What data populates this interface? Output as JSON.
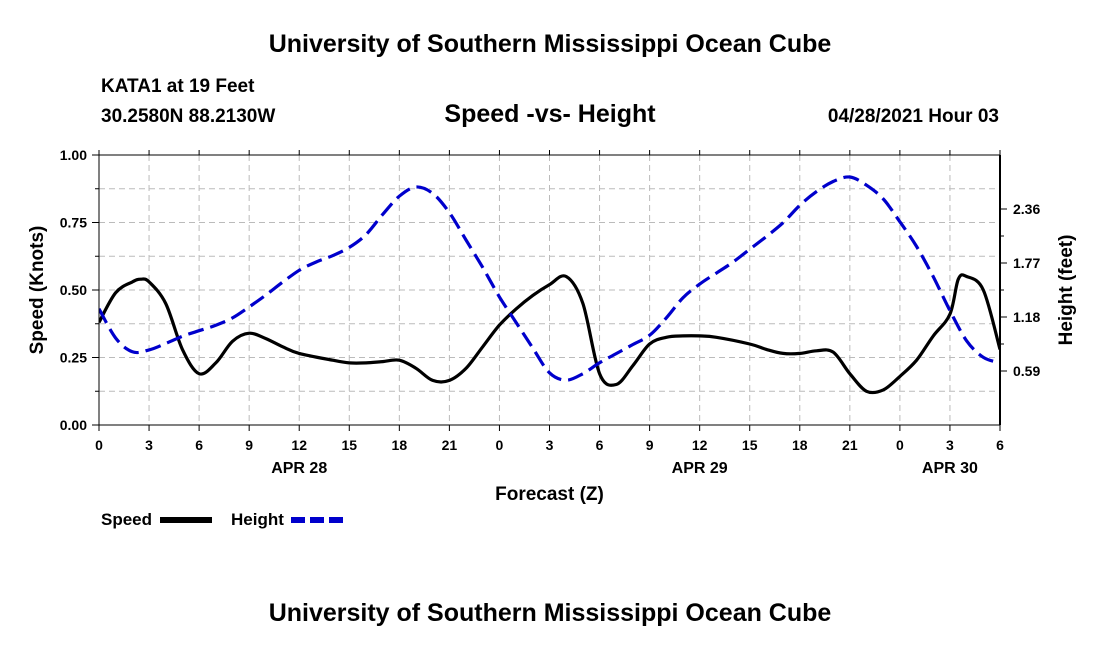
{
  "header": {
    "title": "University of Southern Mississippi Ocean Cube",
    "station": "KATA1 at 19 Feet",
    "coords": "30.2580N  88.2130W",
    "subtitle": "Speed -vs- Height",
    "datetime": "04/28/2021 Hour 03"
  },
  "footer": {
    "title": "University of Southern Mississippi Ocean Cube"
  },
  "chart_data": {
    "type": "line",
    "title": "Speed -vs- Height",
    "xlabel": "Forecast (Z)",
    "ylabel": "Speed (Knots)",
    "y2label": "Height (feet)",
    "x_range": [
      0,
      54
    ],
    "x_ticks": [
      0,
      3,
      6,
      9,
      12,
      15,
      18,
      21,
      24,
      27,
      30,
      33,
      36,
      39,
      42,
      45,
      48,
      51,
      54
    ],
    "x_tick_labels": [
      "0",
      "3",
      "6",
      "9",
      "12",
      "15",
      "18",
      "21",
      "0",
      "3",
      "6",
      "9",
      "12",
      "15",
      "18",
      "21",
      "0",
      "3",
      "6"
    ],
    "date_labels": [
      {
        "x": 12,
        "label": "APR 28"
      },
      {
        "x": 36,
        "label": "APR 29"
      },
      {
        "x": 51,
        "label": "APR 30"
      }
    ],
    "ylim": [
      0,
      1
    ],
    "y_ticks": [
      0,
      0.25,
      0.5,
      0.75,
      1
    ],
    "y_tick_labels": [
      "0.00",
      "0.25",
      "0.50",
      "0.75",
      "1.00"
    ],
    "y2lim": [
      0.0,
      2.95
    ],
    "y2_ticks": [
      0.59,
      1.18,
      1.77,
      2.36
    ],
    "y2_tick_labels": [
      "0.59",
      "1.18",
      "1.77",
      "2.36"
    ],
    "grid": true,
    "colors": {
      "speed": "#000000",
      "height": "#0000cc",
      "grid": "#bbbbbb"
    },
    "series": [
      {
        "name": "Speed",
        "axis": "left",
        "style": "solid",
        "x": [
          0,
          1,
          2,
          2.5,
          3,
          4,
          5,
          6,
          7,
          8,
          9,
          10,
          11,
          12,
          14,
          15,
          16,
          17,
          18,
          19,
          20,
          21,
          22,
          23,
          24,
          25,
          26,
          27,
          28,
          29,
          30,
          31,
          32,
          33,
          34,
          35,
          36,
          37,
          39,
          40,
          41,
          42,
          43,
          44,
          45,
          46,
          47,
          48,
          49,
          50,
          51,
          51.5,
          52,
          53,
          54
        ],
        "y": [
          0.38,
          0.49,
          0.53,
          0.54,
          0.53,
          0.45,
          0.28,
          0.19,
          0.23,
          0.31,
          0.34,
          0.32,
          0.29,
          0.265,
          0.24,
          0.23,
          0.23,
          0.235,
          0.24,
          0.21,
          0.165,
          0.165,
          0.21,
          0.29,
          0.37,
          0.43,
          0.48,
          0.52,
          0.55,
          0.45,
          0.19,
          0.15,
          0.22,
          0.3,
          0.325,
          0.33,
          0.33,
          0.325,
          0.3,
          0.28,
          0.265,
          0.265,
          0.275,
          0.27,
          0.19,
          0.125,
          0.13,
          0.18,
          0.24,
          0.33,
          0.41,
          0.54,
          0.55,
          0.5,
          0.28
        ]
      },
      {
        "name": "Height",
        "axis": "right",
        "style": "dashed",
        "x": [
          0,
          1,
          2,
          3,
          4,
          5,
          6,
          7,
          8,
          9,
          10,
          11,
          12,
          13,
          14,
          15,
          16,
          17,
          18,
          19,
          20,
          21,
          22,
          23,
          24,
          25,
          26,
          27,
          28,
          29,
          30,
          31,
          32,
          33,
          34,
          35,
          36,
          37,
          38,
          39,
          40,
          41,
          42,
          43,
          44,
          45,
          46,
          47,
          48,
          49,
          50,
          51,
          52,
          53,
          54
        ],
        "y": [
          1.27,
          0.95,
          0.8,
          0.82,
          0.89,
          0.97,
          1.03,
          1.09,
          1.17,
          1.29,
          1.42,
          1.56,
          1.69,
          1.78,
          1.85,
          1.94,
          2.08,
          2.3,
          2.5,
          2.6,
          2.53,
          2.32,
          2.02,
          1.72,
          1.4,
          1.12,
          0.84,
          0.57,
          0.49,
          0.56,
          0.68,
          0.78,
          0.88,
          0.98,
          1.17,
          1.39,
          1.54,
          1.66,
          1.78,
          1.92,
          2.06,
          2.21,
          2.4,
          2.55,
          2.66,
          2.71,
          2.62,
          2.47,
          2.22,
          1.95,
          1.62,
          1.25,
          0.92,
          0.74,
          0.68
        ]
      }
    ]
  },
  "legend": {
    "position": "bottom-left",
    "items": [
      {
        "label": "Speed"
      },
      {
        "label": "Height"
      }
    ]
  }
}
